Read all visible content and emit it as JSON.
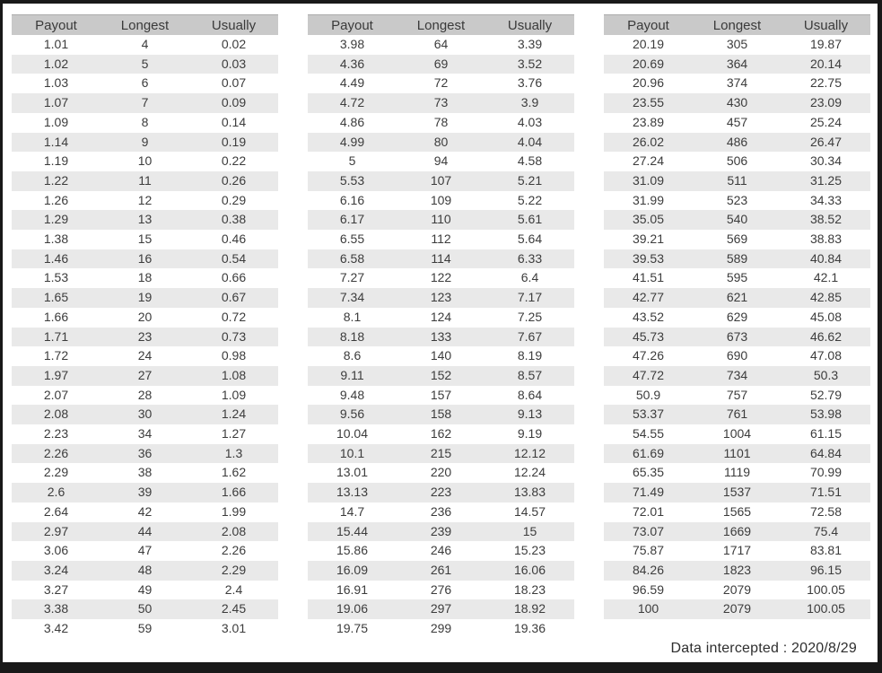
{
  "columns": [
    "Payout",
    "Longest",
    "Usually"
  ],
  "column_keys": [
    "payout",
    "longest",
    "usually"
  ],
  "tables": [
    {
      "rows": [
        [
          "1.01",
          "4",
          "0.02"
        ],
        [
          "1.02",
          "5",
          "0.03"
        ],
        [
          "1.03",
          "6",
          "0.07"
        ],
        [
          "1.07",
          "7",
          "0.09"
        ],
        [
          "1.09",
          "8",
          "0.14"
        ],
        [
          "1.14",
          "9",
          "0.19"
        ],
        [
          "1.19",
          "10",
          "0.22"
        ],
        [
          "1.22",
          "11",
          "0.26"
        ],
        [
          "1.26",
          "12",
          "0.29"
        ],
        [
          "1.29",
          "13",
          "0.38"
        ],
        [
          "1.38",
          "15",
          "0.46"
        ],
        [
          "1.46",
          "16",
          "0.54"
        ],
        [
          "1.53",
          "18",
          "0.66"
        ],
        [
          "1.65",
          "19",
          "0.67"
        ],
        [
          "1.66",
          "20",
          "0.72"
        ],
        [
          "1.71",
          "23",
          "0.73"
        ],
        [
          "1.72",
          "24",
          "0.98"
        ],
        [
          "1.97",
          "27",
          "1.08"
        ],
        [
          "2.07",
          "28",
          "1.09"
        ],
        [
          "2.08",
          "30",
          "1.24"
        ],
        [
          "2.23",
          "34",
          "1.27"
        ],
        [
          "2.26",
          "36",
          "1.3"
        ],
        [
          "2.29",
          "38",
          "1.62"
        ],
        [
          "2.6",
          "39",
          "1.66"
        ],
        [
          "2.64",
          "42",
          "1.99"
        ],
        [
          "2.97",
          "44",
          "2.08"
        ],
        [
          "3.06",
          "47",
          "2.26"
        ],
        [
          "3.24",
          "48",
          "2.29"
        ],
        [
          "3.27",
          "49",
          "2.4"
        ],
        [
          "3.38",
          "50",
          "2.45"
        ],
        [
          "3.42",
          "59",
          "3.01"
        ]
      ]
    },
    {
      "rows": [
        [
          "3.98",
          "64",
          "3.39"
        ],
        [
          "4.36",
          "69",
          "3.52"
        ],
        [
          "4.49",
          "72",
          "3.76"
        ],
        [
          "4.72",
          "73",
          "3.9"
        ],
        [
          "4.86",
          "78",
          "4.03"
        ],
        [
          "4.99",
          "80",
          "4.04"
        ],
        [
          "5",
          "94",
          "4.58"
        ],
        [
          "5.53",
          "107",
          "5.21"
        ],
        [
          "6.16",
          "109",
          "5.22"
        ],
        [
          "6.17",
          "110",
          "5.61"
        ],
        [
          "6.55",
          "112",
          "5.64"
        ],
        [
          "6.58",
          "114",
          "6.33"
        ],
        [
          "7.27",
          "122",
          "6.4"
        ],
        [
          "7.34",
          "123",
          "7.17"
        ],
        [
          "8.1",
          "124",
          "7.25"
        ],
        [
          "8.18",
          "133",
          "7.67"
        ],
        [
          "8.6",
          "140",
          "8.19"
        ],
        [
          "9.11",
          "152",
          "8.57"
        ],
        [
          "9.48",
          "157",
          "8.64"
        ],
        [
          "9.56",
          "158",
          "9.13"
        ],
        [
          "10.04",
          "162",
          "9.19"
        ],
        [
          "10.1",
          "215",
          "12.12"
        ],
        [
          "13.01",
          "220",
          "12.24"
        ],
        [
          "13.13",
          "223",
          "13.83"
        ],
        [
          "14.7",
          "236",
          "14.57"
        ],
        [
          "15.44",
          "239",
          "15"
        ],
        [
          "15.86",
          "246",
          "15.23"
        ],
        [
          "16.09",
          "261",
          "16.06"
        ],
        [
          "16.91",
          "276",
          "18.23"
        ],
        [
          "19.06",
          "297",
          "18.92"
        ],
        [
          "19.75",
          "299",
          "19.36"
        ]
      ]
    },
    {
      "rows": [
        [
          "20.19",
          "305",
          "19.87"
        ],
        [
          "20.69",
          "364",
          "20.14"
        ],
        [
          "20.96",
          "374",
          "22.75"
        ],
        [
          "23.55",
          "430",
          "23.09"
        ],
        [
          "23.89",
          "457",
          "25.24"
        ],
        [
          "26.02",
          "486",
          "26.47"
        ],
        [
          "27.24",
          "506",
          "30.34"
        ],
        [
          "31.09",
          "511",
          "31.25"
        ],
        [
          "31.99",
          "523",
          "34.33"
        ],
        [
          "35.05",
          "540",
          "38.52"
        ],
        [
          "39.21",
          "569",
          "38.83"
        ],
        [
          "39.53",
          "589",
          "40.84"
        ],
        [
          "41.51",
          "595",
          "42.1"
        ],
        [
          "42.77",
          "621",
          "42.85"
        ],
        [
          "43.52",
          "629",
          "45.08"
        ],
        [
          "45.73",
          "673",
          "46.62"
        ],
        [
          "47.26",
          "690",
          "47.08"
        ],
        [
          "47.72",
          "734",
          "50.3"
        ],
        [
          "50.9",
          "757",
          "52.79"
        ],
        [
          "53.37",
          "761",
          "53.98"
        ],
        [
          "54.55",
          "1004",
          "61.15"
        ],
        [
          "61.69",
          "1101",
          "64.84"
        ],
        [
          "65.35",
          "1119",
          "70.99"
        ],
        [
          "71.49",
          "1537",
          "71.51"
        ],
        [
          "72.01",
          "1565",
          "72.58"
        ],
        [
          "73.07",
          "1669",
          "75.4"
        ],
        [
          "75.87",
          "1717",
          "83.81"
        ],
        [
          "84.26",
          "1823",
          "96.15"
        ],
        [
          "96.59",
          "2079",
          "100.05"
        ],
        [
          "100",
          "2079",
          "100.05"
        ]
      ]
    }
  ],
  "footer": {
    "note": "Data intercepted : 2020/8/29"
  },
  "colors": {
    "header_bg": "#c9c9c9",
    "stripe_bg": "#e9e9e9",
    "frame_border": "#191919",
    "text": "#3c3c3c"
  }
}
